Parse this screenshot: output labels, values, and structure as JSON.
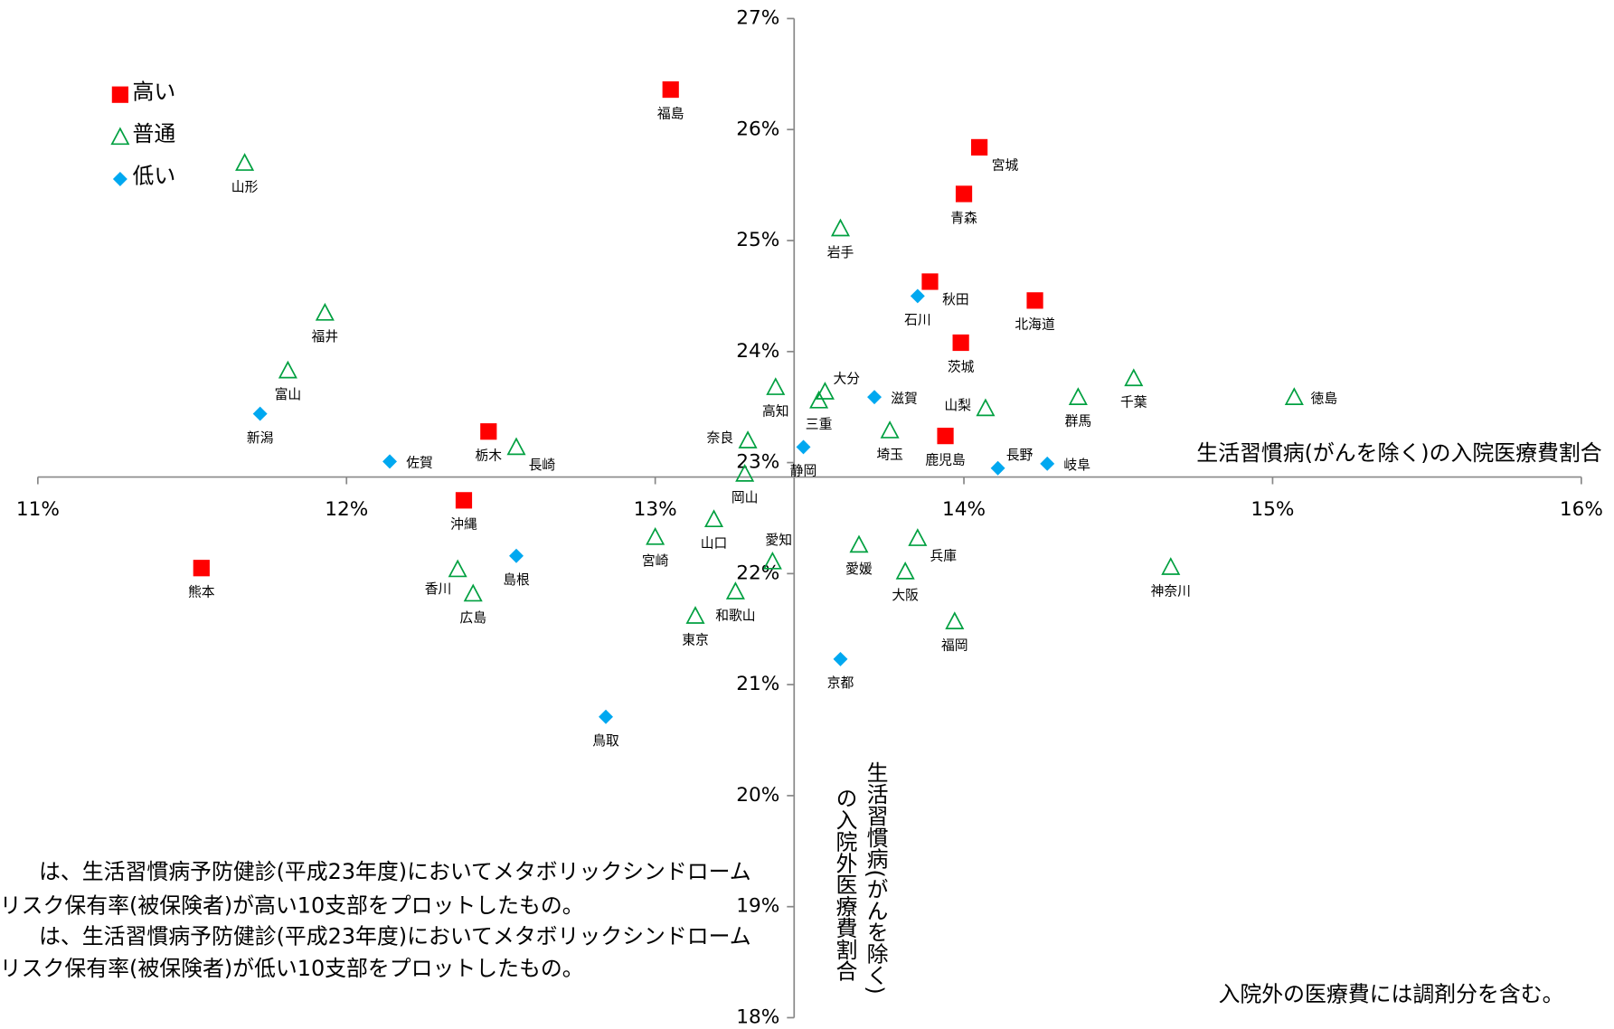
{
  "chart_data": {
    "type": "scatter",
    "x_label": "生活習慣病(がんを除く)の入院医療費割合",
    "y_label": [
      "生活習慣病(がんを除く)",
      "の入院外医療費割合"
    ],
    "xlim": [
      11,
      16
    ],
    "ylim": [
      18,
      27
    ],
    "xticks": [
      {
        "value": 11,
        "label": "11%"
      },
      {
        "value": 12,
        "label": "12%"
      },
      {
        "value": 13,
        "label": "13%"
      },
      {
        "value": 14,
        "label": "14%"
      },
      {
        "value": 15,
        "label": "15%"
      },
      {
        "value": 16,
        "label": "16%"
      }
    ],
    "yticks": [
      {
        "value": 18,
        "label": "18%"
      },
      {
        "value": 19,
        "label": "19%"
      },
      {
        "value": 20,
        "label": "20%"
      },
      {
        "value": 21,
        "label": "21%"
      },
      {
        "value": 22,
        "label": "22%"
      },
      {
        "value": 23,
        "label": "23%"
      },
      {
        "value": 24,
        "label": "24%"
      },
      {
        "value": 25,
        "label": "25%"
      },
      {
        "value": 26,
        "label": "26%"
      },
      {
        "value": 27,
        "label": "27%"
      }
    ],
    "x_axis_crosses_at": 22.87,
    "y_axis_crosses_at": 13.45,
    "series": [
      {
        "name": "高い",
        "color": "#ff0000",
        "marker": "square",
        "labels": [
          "福島",
          "宮城",
          "青森",
          "秋田",
          "北海道",
          "茨城",
          "鹿児島",
          "栃木",
          "沖縄",
          "熊本"
        ],
        "x": [
          13.05,
          14.05,
          14.0,
          13.89,
          14.23,
          13.99,
          13.94,
          12.46,
          12.38,
          11.53
        ],
        "values": [
          26.36,
          25.84,
          25.42,
          24.63,
          24.46,
          24.08,
          23.24,
          23.28,
          22.66,
          22.05
        ]
      },
      {
        "name": "普通",
        "color": "#00a040",
        "marker": "triangle",
        "labels": [
          "山形",
          "福井",
          "富山",
          "長崎",
          "岩手",
          "高知",
          "大分",
          "三重",
          "奈良",
          "岡山",
          "埼玉",
          "山梨",
          "群馬",
          "千葉",
          "徳島",
          "山口",
          "宮崎",
          "愛知",
          "愛媛",
          "兵庫",
          "大阪",
          "香川",
          "広島",
          "和歌山",
          "東京",
          "福岡",
          "神奈川"
        ],
        "x": [
          11.67,
          11.93,
          11.81,
          12.55,
          13.6,
          13.39,
          13.55,
          13.53,
          13.3,
          13.29,
          13.76,
          14.07,
          14.37,
          14.55,
          15.07,
          13.19,
          13.0,
          13.38,
          13.66,
          13.85,
          13.81,
          12.36,
          12.41,
          13.26,
          13.13,
          13.97,
          14.67
        ],
        "values": [
          25.7,
          24.35,
          23.83,
          23.14,
          25.11,
          23.68,
          23.64,
          23.56,
          23.2,
          22.9,
          23.29,
          23.49,
          23.59,
          23.76,
          23.59,
          22.49,
          22.33,
          22.11,
          22.26,
          22.32,
          22.02,
          22.04,
          21.82,
          21.84,
          21.62,
          21.57,
          22.06
        ]
      },
      {
        "name": "低い",
        "color": "#00a8f0",
        "marker": "diamond",
        "labels": [
          "新潟",
          "佐賀",
          "島根",
          "静岡",
          "滋賀",
          "石川",
          "長野",
          "岐阜",
          "京都",
          "鳥取"
        ],
        "x": [
          11.72,
          12.14,
          12.55,
          13.48,
          13.71,
          13.85,
          14.11,
          14.27,
          13.6,
          12.84
        ],
        "values": [
          23.44,
          23.01,
          22.16,
          23.14,
          23.59,
          24.5,
          22.95,
          22.99,
          21.23,
          20.71
        ]
      }
    ],
    "notes": [
      "は、生活習慣病予防健診(平成23年度)においてメタボリックシンドローム",
      "リスク保有率(被保険者)が高い10支部をプロットしたもの。",
      "は、生活習慣病予防健診(平成23年度)においてメタボリックシンドローム",
      "リスク保有率(被保険者)が低い10支部をプロットしたもの。"
    ],
    "footnote": "入院外の医療費には調剤分を含む。"
  }
}
